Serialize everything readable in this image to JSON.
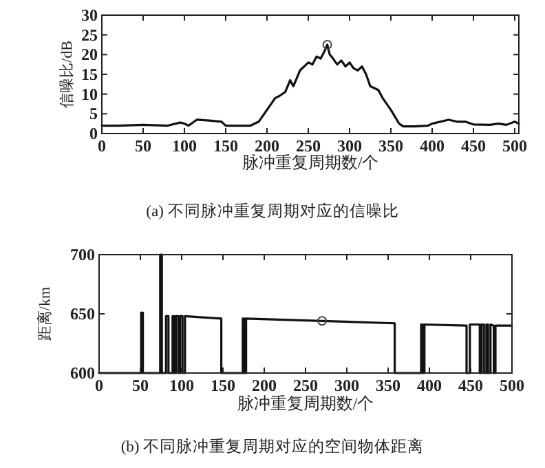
{
  "chart_data": [
    {
      "type": "line",
      "xlabel": "脉冲重复周期数/个",
      "ylabel": "信噪比/dB",
      "annotations": [
        "(a) 不同脉冲重复周期对应的信噪比"
      ],
      "xlim": [
        0,
        505
      ],
      "ylim": [
        0,
        30
      ],
      "xticks": [
        0,
        50,
        100,
        150,
        200,
        250,
        300,
        350,
        400,
        450,
        500
      ],
      "yticks": [
        0,
        5,
        10,
        15,
        20,
        25,
        30
      ],
      "series": [
        {
          "color": "#111111",
          "x": [
            0,
            20,
            50,
            80,
            95,
            100,
            105,
            115,
            130,
            145,
            150,
            180,
            190,
            200,
            210,
            215,
            222,
            228,
            232,
            240,
            250,
            255,
            260,
            265,
            270,
            273,
            276,
            280,
            285,
            290,
            295,
            300,
            305,
            310,
            315,
            320,
            325,
            330,
            335,
            340,
            350,
            360,
            365,
            380,
            395,
            400,
            420,
            430,
            440,
            450,
            470,
            480,
            490,
            500,
            505
          ],
          "values": [
            2,
            2,
            2.2,
            2,
            2.8,
            2.5,
            2,
            3.5,
            3.3,
            3,
            2,
            2,
            3,
            6,
            9,
            9.5,
            10.5,
            13.5,
            12,
            16,
            18,
            17.5,
            19.5,
            19,
            21,
            22.5,
            20,
            19,
            17.5,
            18.5,
            17,
            18,
            16.5,
            16,
            17,
            15,
            12,
            11.5,
            11,
            9,
            6,
            2.5,
            1.8,
            1.8,
            2,
            2.5,
            3.5,
            3,
            3,
            2.3,
            2.2,
            2.5,
            2.2,
            3,
            2.5
          ]
        },
        {
          "type": "scatter",
          "color": "#444444",
          "marker": "circle",
          "x": [
            273
          ],
          "values": [
            22.5
          ]
        }
      ]
    },
    {
      "type": "line",
      "xlabel": "脉冲重复周期数/个",
      "ylabel": "距离/km",
      "annotations": [
        "(b) 不同脉冲重复周期对应的空间物体距离"
      ],
      "xlim": [
        0,
        500
      ],
      "ylim": [
        600,
        700
      ],
      "xticks": [
        0,
        50,
        100,
        150,
        200,
        250,
        300,
        350,
        400,
        450,
        500
      ],
      "yticks": [
        600,
        650,
        700
      ],
      "series": [
        {
          "color": "#111111",
          "x": [
            0,
            51,
            51,
            53,
            53,
            74,
            74,
            76,
            76,
            81,
            81,
            84,
            84,
            89,
            89,
            91,
            91,
            93,
            93,
            96,
            96,
            98,
            98,
            101,
            101,
            104,
            104,
            125,
            148,
            148,
            174,
            174,
            176,
            176,
            178,
            178,
            270,
            358,
            358,
            390,
            390,
            392,
            392,
            394,
            394,
            445,
            445,
            449,
            449,
            461,
            461,
            463,
            463,
            466,
            466,
            469,
            469,
            471,
            471,
            474,
            474,
            478,
            478,
            480,
            480,
            500
          ],
          "values": [
            600,
            600,
            651,
            651,
            600,
            600,
            700,
            700,
            600,
            600,
            648,
            648,
            600,
            600,
            648,
            648,
            600,
            600,
            648,
            648,
            600,
            600,
            648,
            648,
            600,
            600,
            648,
            647,
            646,
            600,
            600,
            646,
            646,
            600,
            600,
            646,
            644,
            642,
            600,
            600,
            641,
            641,
            600,
            600,
            641,
            640,
            600,
            600,
            641,
            641,
            600,
            600,
            641,
            641,
            600,
            600,
            641,
            641,
            600,
            600,
            641,
            640,
            600,
            600,
            640,
            640
          ]
        },
        {
          "type": "scatter",
          "color": "#444444",
          "marker": "circle",
          "x": [
            270
          ],
          "values": [
            644
          ]
        }
      ]
    }
  ]
}
